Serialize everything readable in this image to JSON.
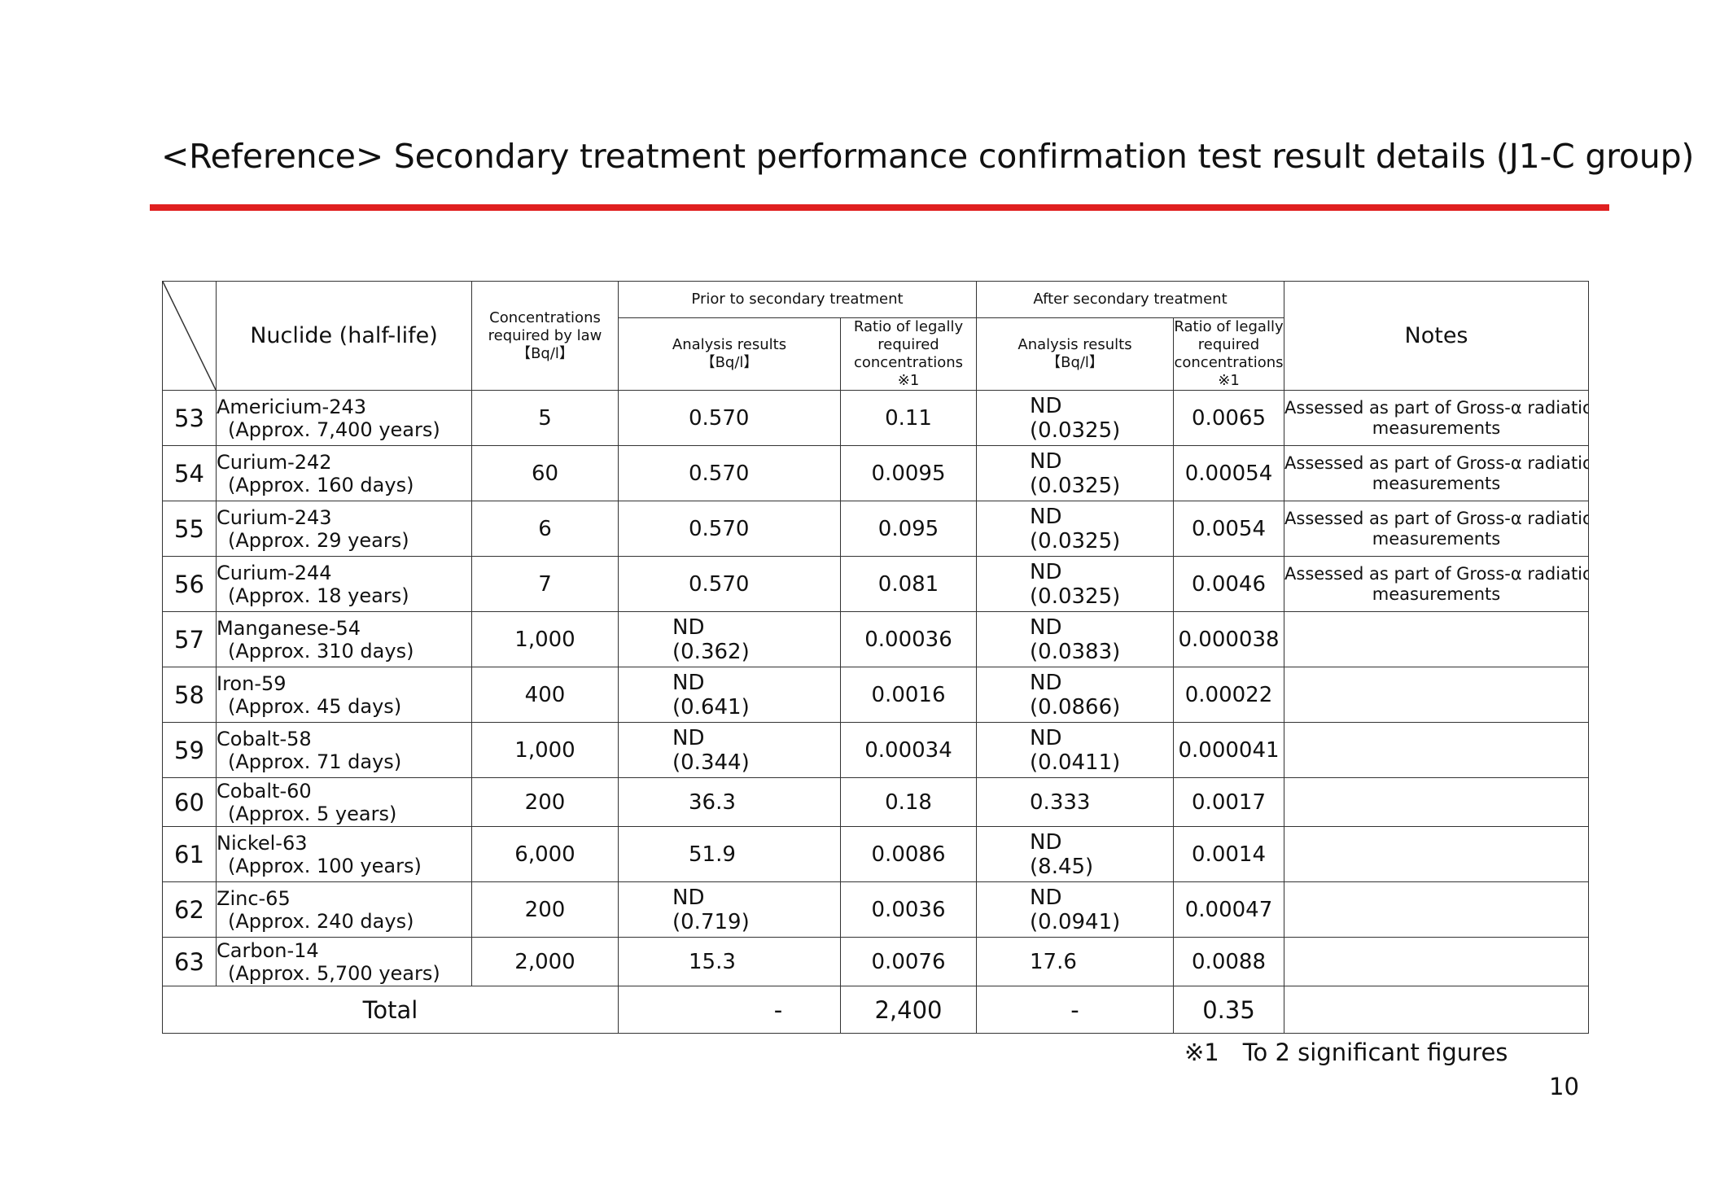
{
  "title": "<Reference> Secondary treatment performance confirmation test result details (J1-C group)",
  "header": {
    "nuclide": "Nuclide (half-life)",
    "law_conc": [
      "Concentrations",
      "required by law",
      "【Bq/l】"
    ],
    "prior": "Prior to secondary treatment",
    "after": "After secondary treatment",
    "analysis": [
      "Analysis results",
      "【Bq/l】"
    ],
    "ratio": [
      "Ratio of legally",
      "required",
      "concentrations",
      "※1"
    ],
    "notes": "Notes"
  },
  "rows": [
    {
      "no": "53",
      "name": "Americium-243",
      "half": "(Approx. 7,400 years)",
      "law": "5",
      "prior_a": "0.570",
      "prior_b": "",
      "prior_ratio": "0.11",
      "after_a": "ND",
      "after_b": "(0.0325)",
      "after_ratio": "0.0065",
      "note1": "Assessed as part of Gross-α radiation",
      "note2": "measurements"
    },
    {
      "no": "54",
      "name": "Curium-242",
      "half": "(Approx. 160 days)",
      "law": "60",
      "prior_a": "0.570",
      "prior_b": "",
      "prior_ratio": "0.0095",
      "after_a": "ND",
      "after_b": "(0.0325)",
      "after_ratio": "0.00054",
      "note1": "Assessed as part of Gross-α radiation",
      "note2": "measurements"
    },
    {
      "no": "55",
      "name": "Curium-243",
      "half": "(Approx. 29 years)",
      "law": "6",
      "prior_a": "0.570",
      "prior_b": "",
      "prior_ratio": "0.095",
      "after_a": "ND",
      "after_b": "(0.0325)",
      "after_ratio": "0.0054",
      "note1": "Assessed as part of Gross-α radiation",
      "note2": "measurements"
    },
    {
      "no": "56",
      "name": "Curium-244",
      "half": "(Approx. 18 years)",
      "law": "7",
      "prior_a": "0.570",
      "prior_b": "",
      "prior_ratio": "0.081",
      "after_a": "ND",
      "after_b": "(0.0325)",
      "after_ratio": "0.0046",
      "note1": "Assessed as part of Gross-α radiation",
      "note2": "measurements"
    },
    {
      "no": "57",
      "name": "Manganese-54",
      "half": "(Approx. 310 days)",
      "law": "1,000",
      "prior_a": "ND",
      "prior_b": "(0.362)",
      "prior_ratio": "0.00036",
      "after_a": "ND",
      "after_b": "(0.0383)",
      "after_ratio": "0.000038",
      "note1": "",
      "note2": ""
    },
    {
      "no": "58",
      "name": "Iron-59",
      "half": "(Approx. 45 days)",
      "law": "400",
      "prior_a": "ND",
      "prior_b": "(0.641)",
      "prior_ratio": "0.0016",
      "after_a": "ND",
      "after_b": "(0.0866)",
      "after_ratio": "0.00022",
      "note1": "",
      "note2": ""
    },
    {
      "no": "59",
      "name": "Cobalt-58",
      "half": "(Approx. 71 days)",
      "law": "1,000",
      "prior_a": "ND",
      "prior_b": "(0.344)",
      "prior_ratio": "0.00034",
      "after_a": "ND",
      "after_b": "(0.0411)",
      "after_ratio": "0.000041",
      "note1": "",
      "note2": ""
    },
    {
      "no": "60",
      "name": "Cobalt-60",
      "half": "(Approx. 5 years)",
      "law": "200",
      "prior_a": "36.3",
      "prior_b": "",
      "prior_ratio": "0.18",
      "after_a": "0.333",
      "after_b": "",
      "after_ratio": "0.0017",
      "note1": "",
      "note2": ""
    },
    {
      "no": "61",
      "name": "Nickel-63",
      "half": "(Approx. 100 years)",
      "law": "6,000",
      "prior_a": "51.9",
      "prior_b": "",
      "prior_ratio": "0.0086",
      "after_a": "ND",
      "after_b": "(8.45)",
      "after_ratio": "0.0014",
      "note1": "",
      "note2": ""
    },
    {
      "no": "62",
      "name": "Zinc-65",
      "half": "(Approx. 240 days)",
      "law": "200",
      "prior_a": "ND",
      "prior_b": "(0.719)",
      "prior_ratio": "0.0036",
      "after_a": "ND",
      "after_b": "(0.0941)",
      "after_ratio": "0.00047",
      "note1": "",
      "note2": ""
    },
    {
      "no": "63",
      "name": "Carbon-14",
      "half": "(Approx. 5,700 years)",
      "law": "2,000",
      "prior_a": "15.3",
      "prior_b": "",
      "prior_ratio": "0.0076",
      "after_a": "17.6",
      "after_b": "",
      "after_ratio": "0.0088",
      "note1": "",
      "note2": ""
    }
  ],
  "total": {
    "label": "Total",
    "prior_a": "-",
    "prior_ratio": "2,400",
    "after_a": "-",
    "after_ratio": "0.35"
  },
  "footnote": "※1　To 2 significant figures",
  "page_number": "10"
}
